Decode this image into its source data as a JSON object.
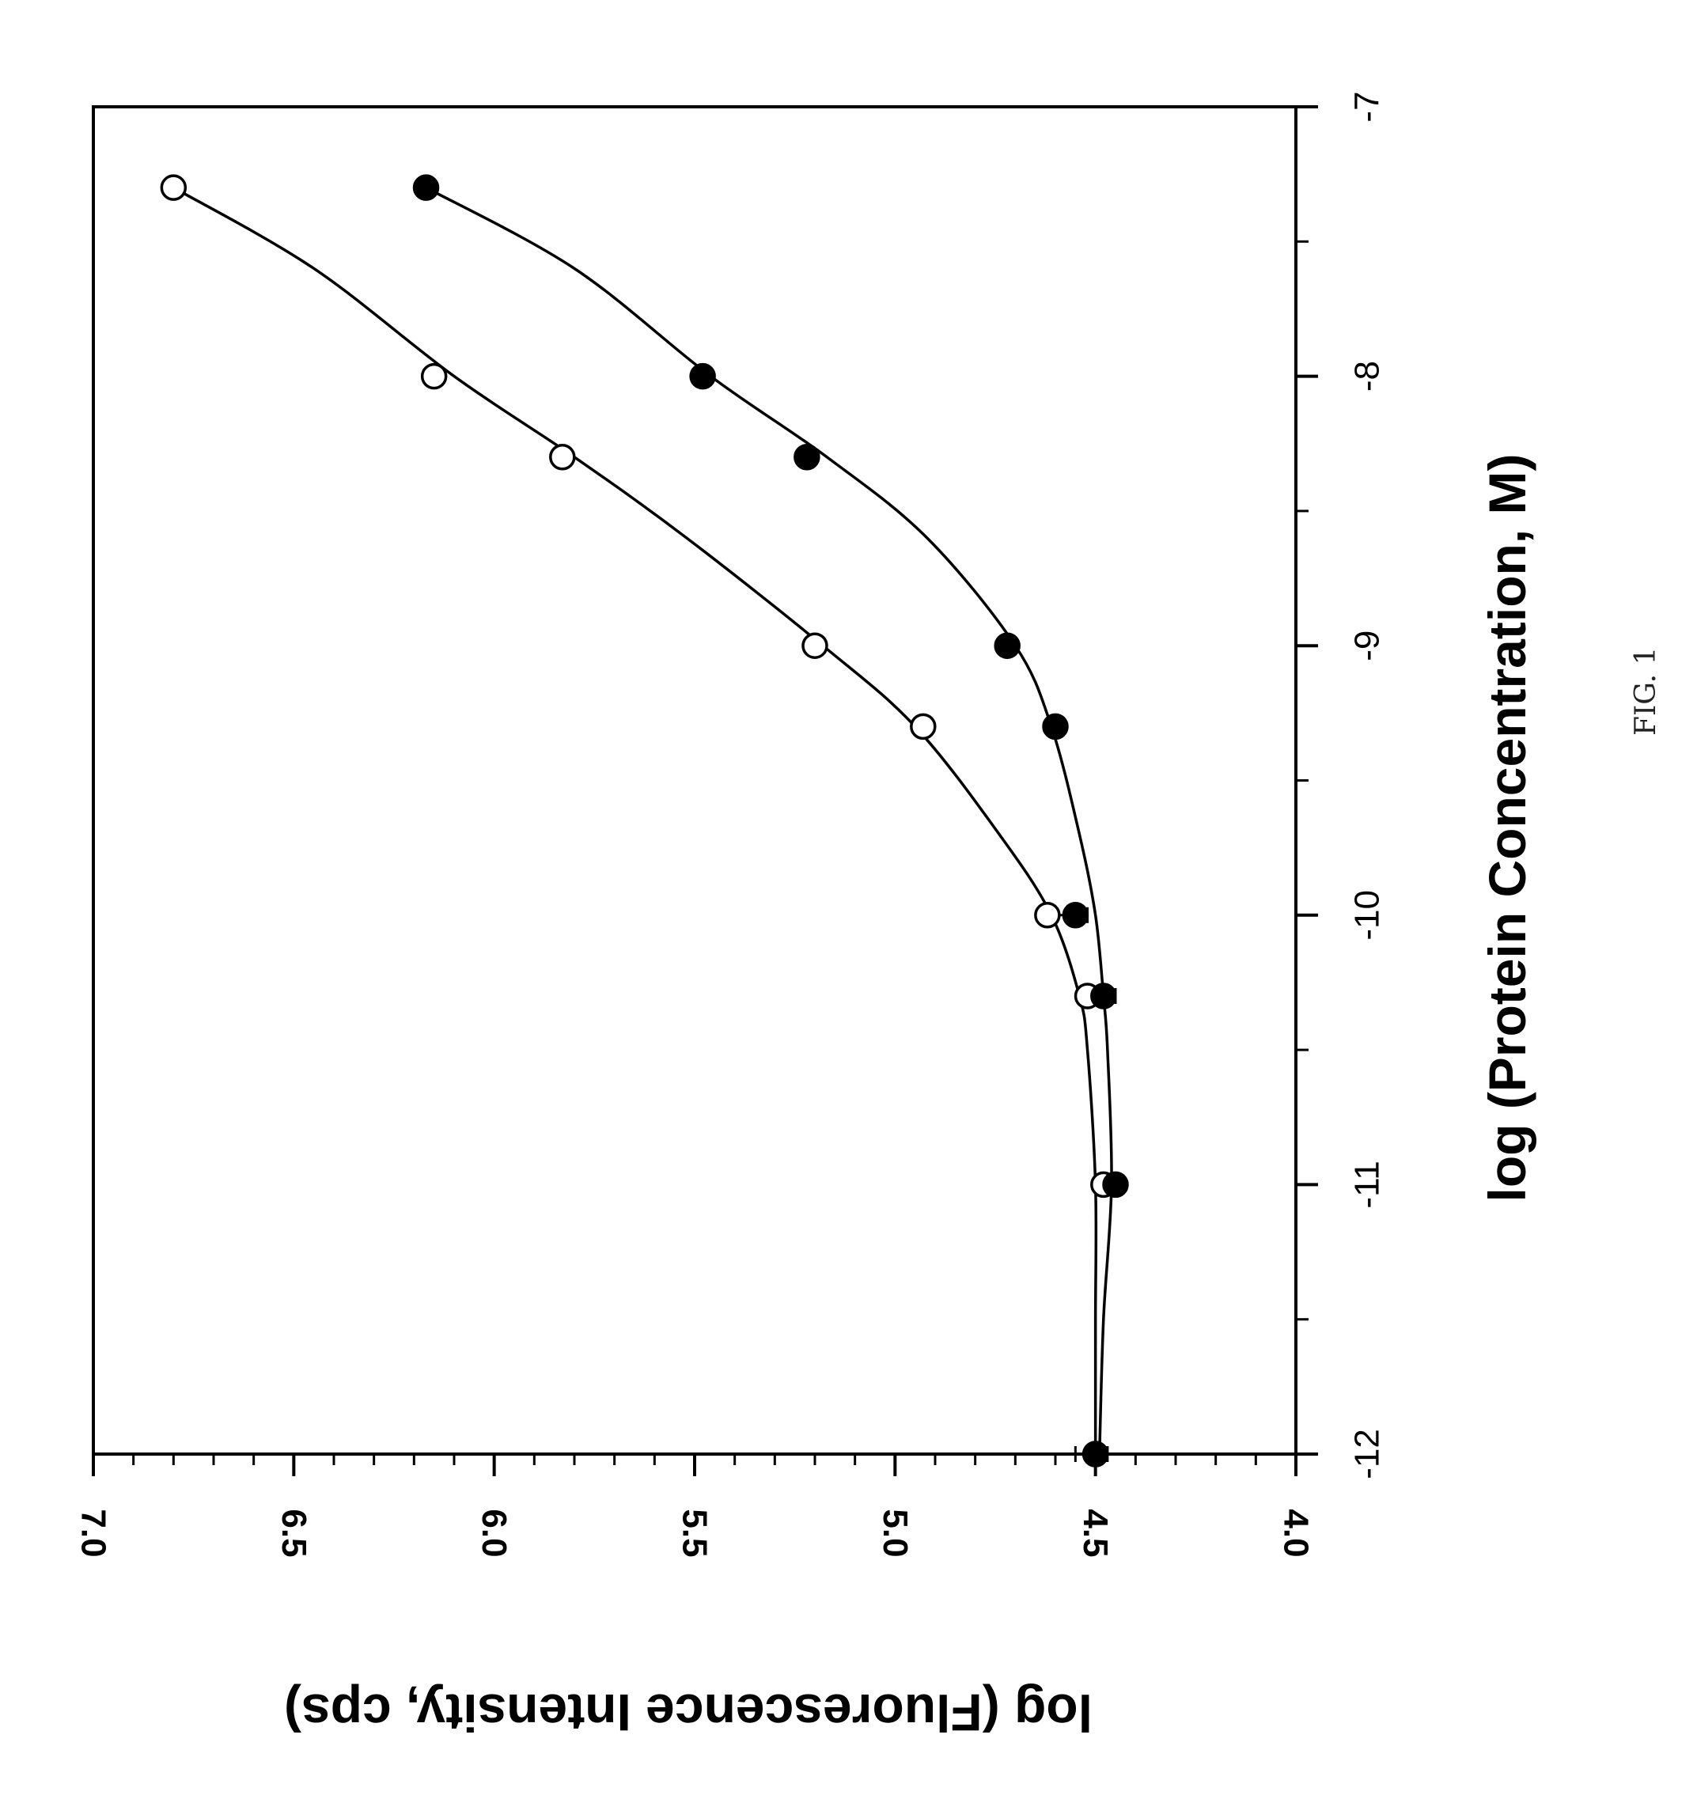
{
  "figure_label": "FIG. 1",
  "chart_data": {
    "type": "scatter",
    "title": "",
    "xlabel": "log (Protein Concentration, M)",
    "ylabel": "log (Fluorescence Intensity, cps)",
    "xlim": [
      -12,
      -7
    ],
    "ylim": [
      4.0,
      7.0
    ],
    "x_ticks": [
      "-12",
      "-11",
      "-10",
      "-9",
      "-8",
      "-7"
    ],
    "y_ticks": [
      "4.0",
      "4.5",
      "5.0",
      "5.5",
      "6.0",
      "6.5",
      "7.0"
    ],
    "grid": false,
    "legend": "none",
    "series": [
      {
        "marker": "open-circle",
        "x": [
          -12,
          -11,
          -10.3,
          -10,
          -9.3,
          -9,
          -8.3,
          -8,
          -7.3
        ],
        "y": [
          4.5,
          4.48,
          4.52,
          4.62,
          4.93,
          5.2,
          5.83,
          6.15,
          6.8
        ]
      },
      {
        "marker": "filled-circle",
        "x": [
          -12,
          -11,
          -10.3,
          -10,
          -9.3,
          -9,
          -8.3,
          -8,
          -7.3
        ],
        "y": [
          4.5,
          4.45,
          4.48,
          4.55,
          4.6,
          4.72,
          5.22,
          5.48,
          6.17
        ]
      }
    ],
    "fit_curves": [
      {
        "for": "open-circle",
        "x": [
          -12,
          -11.5,
          -11,
          -10.5,
          -10.3,
          -10,
          -9.7,
          -9.3,
          -9,
          -8.6,
          -8.3,
          -8,
          -7.6,
          -7.3
        ],
        "y": [
          4.5,
          4.5,
          4.5,
          4.52,
          4.54,
          4.61,
          4.74,
          4.95,
          5.18,
          5.52,
          5.8,
          6.1,
          6.45,
          6.8
        ]
      },
      {
        "for": "filled-circle",
        "x": [
          -12,
          -11.5,
          -11,
          -10.5,
          -10.3,
          -10,
          -9.7,
          -9.3,
          -9,
          -8.6,
          -8.3,
          -8,
          -7.6,
          -7.3
        ],
        "y": [
          4.49,
          4.48,
          4.46,
          4.47,
          4.48,
          4.5,
          4.54,
          4.61,
          4.7,
          4.92,
          5.17,
          5.46,
          5.8,
          6.17
        ]
      }
    ],
    "error_bars": [
      {
        "x": -12,
        "low": 4.47,
        "high": 4.55
      },
      {
        "x": -10.3,
        "low": 4.45,
        "high": 4.52
      },
      {
        "x": -10,
        "low": 4.52,
        "high": 4.64
      }
    ]
  }
}
